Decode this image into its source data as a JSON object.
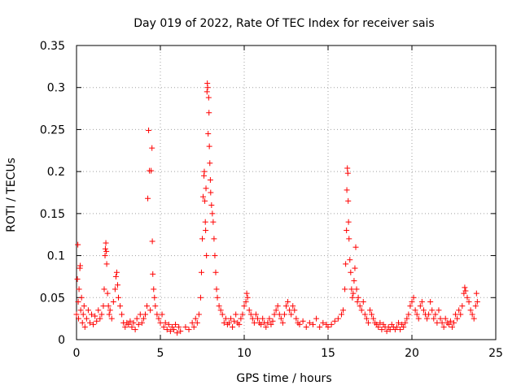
{
  "chart_data": {
    "type": "scatter",
    "title": "Day 019 of 2022, Rate Of TEC Index for receiver sais",
    "xlabel": "GPS time / hours",
    "ylabel": "ROTI / TECUs",
    "xlim": [
      0,
      25
    ],
    "ylim": [
      0,
      0.35
    ],
    "xticks": [
      0,
      5,
      10,
      15,
      20,
      25
    ],
    "yticks": [
      0,
      0.05,
      0.1,
      0.15,
      0.2,
      0.25,
      0.3,
      0.35
    ],
    "xtick_labels": [
      "0",
      "5",
      "10",
      "15",
      "20",
      "25"
    ],
    "ytick_labels": [
      "0",
      "0.05",
      "0.1",
      "0.15",
      "0.2",
      "0.25",
      "0.3",
      "0.35"
    ],
    "grid": true,
    "marker": "+",
    "series_color": "#ff0000",
    "series": [
      {
        "name": "ROTI",
        "points": [
          [
            0.0,
            0.03
          ],
          [
            0.05,
            0.072
          ],
          [
            0.08,
            0.113
          ],
          [
            0.1,
            0.045
          ],
          [
            0.12,
            0.025
          ],
          [
            0.15,
            0.06
          ],
          [
            0.2,
            0.085
          ],
          [
            0.22,
            0.088
          ],
          [
            0.25,
            0.035
          ],
          [
            0.3,
            0.05
          ],
          [
            0.35,
            0.02
          ],
          [
            0.4,
            0.03
          ],
          [
            0.45,
            0.04
          ],
          [
            0.5,
            0.015
          ],
          [
            0.6,
            0.025
          ],
          [
            0.7,
            0.035
          ],
          [
            0.8,
            0.02
          ],
          [
            0.9,
            0.03
          ],
          [
            1.0,
            0.018
          ],
          [
            1.1,
            0.028
          ],
          [
            1.2,
            0.022
          ],
          [
            1.3,
            0.035
          ],
          [
            1.4,
            0.025
          ],
          [
            1.5,
            0.03
          ],
          [
            1.6,
            0.04
          ],
          [
            1.65,
            0.06
          ],
          [
            1.7,
            0.1
          ],
          [
            1.72,
            0.108
          ],
          [
            1.75,
            0.115
          ],
          [
            1.78,
            0.105
          ],
          [
            1.8,
            0.09
          ],
          [
            1.85,
            0.055
          ],
          [
            1.9,
            0.04
          ],
          [
            1.95,
            0.03
          ],
          [
            2.0,
            0.035
          ],
          [
            2.1,
            0.025
          ],
          [
            2.2,
            0.045
          ],
          [
            2.3,
            0.06
          ],
          [
            2.35,
            0.075
          ],
          [
            2.4,
            0.08
          ],
          [
            2.45,
            0.065
          ],
          [
            2.5,
            0.05
          ],
          [
            2.6,
            0.04
          ],
          [
            2.7,
            0.03
          ],
          [
            2.8,
            0.02
          ],
          [
            2.9,
            0.015
          ],
          [
            3.0,
            0.02
          ],
          [
            3.1,
            0.018
          ],
          [
            3.2,
            0.022
          ],
          [
            3.3,
            0.015
          ],
          [
            3.4,
            0.02
          ],
          [
            3.5,
            0.012
          ],
          [
            3.6,
            0.025
          ],
          [
            3.7,
            0.018
          ],
          [
            3.8,
            0.03
          ],
          [
            3.9,
            0.02
          ],
          [
            4.0,
            0.025
          ],
          [
            4.1,
            0.03
          ],
          [
            4.2,
            0.04
          ],
          [
            4.25,
            0.168
          ],
          [
            4.3,
            0.249
          ],
          [
            4.35,
            0.201
          ],
          [
            4.4,
            0.035
          ],
          [
            4.45,
            0.201
          ],
          [
            4.5,
            0.228
          ],
          [
            4.52,
            0.117
          ],
          [
            4.55,
            0.078
          ],
          [
            4.6,
            0.06
          ],
          [
            4.65,
            0.05
          ],
          [
            4.7,
            0.04
          ],
          [
            4.8,
            0.03
          ],
          [
            4.9,
            0.025
          ],
          [
            5.0,
            0.02
          ],
          [
            5.1,
            0.03
          ],
          [
            5.2,
            0.015
          ],
          [
            5.3,
            0.02
          ],
          [
            5.4,
            0.012
          ],
          [
            5.5,
            0.018
          ],
          [
            5.6,
            0.01
          ],
          [
            5.7,
            0.015
          ],
          [
            5.8,
            0.012
          ],
          [
            5.9,
            0.018
          ],
          [
            6.0,
            0.008
          ],
          [
            6.1,
            0.015
          ],
          [
            6.2,
            0.01
          ],
          [
            6.5,
            0.015
          ],
          [
            6.7,
            0.012
          ],
          [
            6.9,
            0.02
          ],
          [
            7.0,
            0.015
          ],
          [
            7.1,
            0.025
          ],
          [
            7.2,
            0.02
          ],
          [
            7.3,
            0.03
          ],
          [
            7.4,
            0.05
          ],
          [
            7.45,
            0.08
          ],
          [
            7.5,
            0.12
          ],
          [
            7.55,
            0.17
          ],
          [
            7.6,
            0.195
          ],
          [
            7.62,
            0.2
          ],
          [
            7.65,
            0.165
          ],
          [
            7.68,
            0.14
          ],
          [
            7.7,
            0.13
          ],
          [
            7.72,
            0.18
          ],
          [
            7.75,
            0.1
          ],
          [
            7.78,
            0.295
          ],
          [
            7.8,
            0.305
          ],
          [
            7.82,
            0.3
          ],
          [
            7.85,
            0.245
          ],
          [
            7.88,
            0.288
          ],
          [
            7.9,
            0.27
          ],
          [
            7.92,
            0.23
          ],
          [
            7.95,
            0.21
          ],
          [
            7.98,
            0.19
          ],
          [
            8.0,
            0.175
          ],
          [
            8.05,
            0.16
          ],
          [
            8.1,
            0.15
          ],
          [
            8.15,
            0.14
          ],
          [
            8.2,
            0.12
          ],
          [
            8.25,
            0.1
          ],
          [
            8.3,
            0.08
          ],
          [
            8.35,
            0.06
          ],
          [
            8.4,
            0.05
          ],
          [
            8.5,
            0.04
          ],
          [
            8.6,
            0.035
          ],
          [
            8.7,
            0.03
          ],
          [
            8.8,
            0.02
          ],
          [
            8.9,
            0.025
          ],
          [
            9.0,
            0.018
          ],
          [
            9.1,
            0.02
          ],
          [
            9.2,
            0.025
          ],
          [
            9.3,
            0.015
          ],
          [
            9.4,
            0.022
          ],
          [
            9.5,
            0.03
          ],
          [
            9.6,
            0.02
          ],
          [
            9.7,
            0.018
          ],
          [
            9.8,
            0.025
          ],
          [
            9.9,
            0.03
          ],
          [
            10.0,
            0.04
          ],
          [
            10.1,
            0.045
          ],
          [
            10.15,
            0.055
          ],
          [
            10.2,
            0.05
          ],
          [
            10.3,
            0.035
          ],
          [
            10.4,
            0.03
          ],
          [
            10.5,
            0.025
          ],
          [
            10.6,
            0.02
          ],
          [
            10.7,
            0.03
          ],
          [
            10.8,
            0.025
          ],
          [
            10.9,
            0.02
          ],
          [
            11.0,
            0.018
          ],
          [
            11.1,
            0.025
          ],
          [
            11.2,
            0.02
          ],
          [
            11.3,
            0.015
          ],
          [
            11.4,
            0.02
          ],
          [
            11.5,
            0.025
          ],
          [
            11.6,
            0.018
          ],
          [
            11.7,
            0.022
          ],
          [
            11.8,
            0.03
          ],
          [
            11.9,
            0.035
          ],
          [
            12.0,
            0.04
          ],
          [
            12.1,
            0.03
          ],
          [
            12.2,
            0.025
          ],
          [
            12.3,
            0.02
          ],
          [
            12.4,
            0.03
          ],
          [
            12.5,
            0.04
          ],
          [
            12.6,
            0.045
          ],
          [
            12.7,
            0.035
          ],
          [
            12.8,
            0.03
          ],
          [
            12.9,
            0.04
          ],
          [
            13.0,
            0.035
          ],
          [
            13.1,
            0.025
          ],
          [
            13.2,
            0.02
          ],
          [
            13.3,
            0.018
          ],
          [
            13.5,
            0.022
          ],
          [
            13.7,
            0.015
          ],
          [
            13.9,
            0.02
          ],
          [
            14.1,
            0.018
          ],
          [
            14.3,
            0.025
          ],
          [
            14.5,
            0.015
          ],
          [
            14.7,
            0.02
          ],
          [
            14.9,
            0.018
          ],
          [
            15.0,
            0.015
          ],
          [
            15.2,
            0.018
          ],
          [
            15.4,
            0.022
          ],
          [
            15.6,
            0.025
          ],
          [
            15.8,
            0.03
          ],
          [
            15.9,
            0.035
          ],
          [
            16.0,
            0.06
          ],
          [
            16.05,
            0.09
          ],
          [
            16.1,
            0.13
          ],
          [
            16.12,
            0.178
          ],
          [
            16.15,
            0.204
          ],
          [
            16.18,
            0.198
          ],
          [
            16.2,
            0.165
          ],
          [
            16.22,
            0.14
          ],
          [
            16.25,
            0.12
          ],
          [
            16.3,
            0.095
          ],
          [
            16.35,
            0.08
          ],
          [
            16.4,
            0.06
          ],
          [
            16.45,
            0.05
          ],
          [
            16.5,
            0.055
          ],
          [
            16.55,
            0.07
          ],
          [
            16.6,
            0.085
          ],
          [
            16.65,
            0.11
          ],
          [
            16.7,
            0.06
          ],
          [
            16.75,
            0.045
          ],
          [
            16.8,
            0.05
          ],
          [
            16.9,
            0.04
          ],
          [
            17.0,
            0.035
          ],
          [
            17.1,
            0.045
          ],
          [
            17.2,
            0.03
          ],
          [
            17.3,
            0.025
          ],
          [
            17.4,
            0.02
          ],
          [
            17.5,
            0.035
          ],
          [
            17.6,
            0.03
          ],
          [
            17.7,
            0.025
          ],
          [
            17.8,
            0.02
          ],
          [
            17.9,
            0.018
          ],
          [
            18.0,
            0.015
          ],
          [
            18.1,
            0.02
          ],
          [
            18.2,
            0.012
          ],
          [
            18.3,
            0.018
          ],
          [
            18.4,
            0.015
          ],
          [
            18.5,
            0.01
          ],
          [
            18.6,
            0.015
          ],
          [
            18.7,
            0.012
          ],
          [
            18.8,
            0.018
          ],
          [
            18.9,
            0.015
          ],
          [
            19.0,
            0.012
          ],
          [
            19.1,
            0.015
          ],
          [
            19.2,
            0.02
          ],
          [
            19.3,
            0.012
          ],
          [
            19.4,
            0.018
          ],
          [
            19.5,
            0.015
          ],
          [
            19.6,
            0.02
          ],
          [
            19.7,
            0.025
          ],
          [
            19.8,
            0.03
          ],
          [
            19.9,
            0.04
          ],
          [
            20.0,
            0.045
          ],
          [
            20.1,
            0.05
          ],
          [
            20.2,
            0.035
          ],
          [
            20.3,
            0.03
          ],
          [
            20.4,
            0.025
          ],
          [
            20.5,
            0.04
          ],
          [
            20.6,
            0.045
          ],
          [
            20.7,
            0.035
          ],
          [
            20.8,
            0.03
          ],
          [
            20.9,
            0.025
          ],
          [
            21.0,
            0.03
          ],
          [
            21.1,
            0.045
          ],
          [
            21.2,
            0.035
          ],
          [
            21.3,
            0.025
          ],
          [
            21.4,
            0.03
          ],
          [
            21.5,
            0.02
          ],
          [
            21.6,
            0.035
          ],
          [
            21.7,
            0.025
          ],
          [
            21.8,
            0.02
          ],
          [
            21.9,
            0.015
          ],
          [
            22.0,
            0.025
          ],
          [
            22.1,
            0.02
          ],
          [
            22.2,
            0.018
          ],
          [
            22.3,
            0.022
          ],
          [
            22.4,
            0.015
          ],
          [
            22.5,
            0.02
          ],
          [
            22.6,
            0.03
          ],
          [
            22.7,
            0.025
          ],
          [
            22.8,
            0.035
          ],
          [
            22.9,
            0.03
          ],
          [
            23.0,
            0.04
          ],
          [
            23.1,
            0.055
          ],
          [
            23.15,
            0.062
          ],
          [
            23.2,
            0.058
          ],
          [
            23.3,
            0.05
          ],
          [
            23.4,
            0.045
          ],
          [
            23.5,
            0.035
          ],
          [
            23.6,
            0.03
          ],
          [
            23.7,
            0.025
          ],
          [
            23.8,
            0.04
          ],
          [
            23.85,
            0.055
          ],
          [
            23.9,
            0.045
          ]
        ]
      }
    ]
  }
}
